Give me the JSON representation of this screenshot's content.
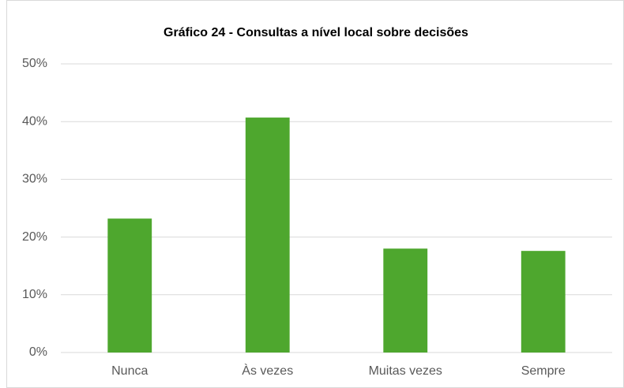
{
  "chart_data": {
    "type": "bar",
    "title": "Gráfico 24 - Consultas a nível local sobre decisões",
    "categories": [
      "Nunca",
      "Às vezes",
      "Muitas vezes",
      "Sempre"
    ],
    "values": [
      23.2,
      40.7,
      18.0,
      17.6
    ],
    "color": "#4ea72e",
    "ylim": [
      0,
      50
    ],
    "yticks": [
      {
        "value": 0,
        "label": "0%"
      },
      {
        "value": 10,
        "label": "10%"
      },
      {
        "value": 20,
        "label": "20%"
      },
      {
        "value": 30,
        "label": "30%"
      },
      {
        "value": 40,
        "label": "40%"
      },
      {
        "value": 50,
        "label": "50%"
      }
    ],
    "grid": true
  }
}
